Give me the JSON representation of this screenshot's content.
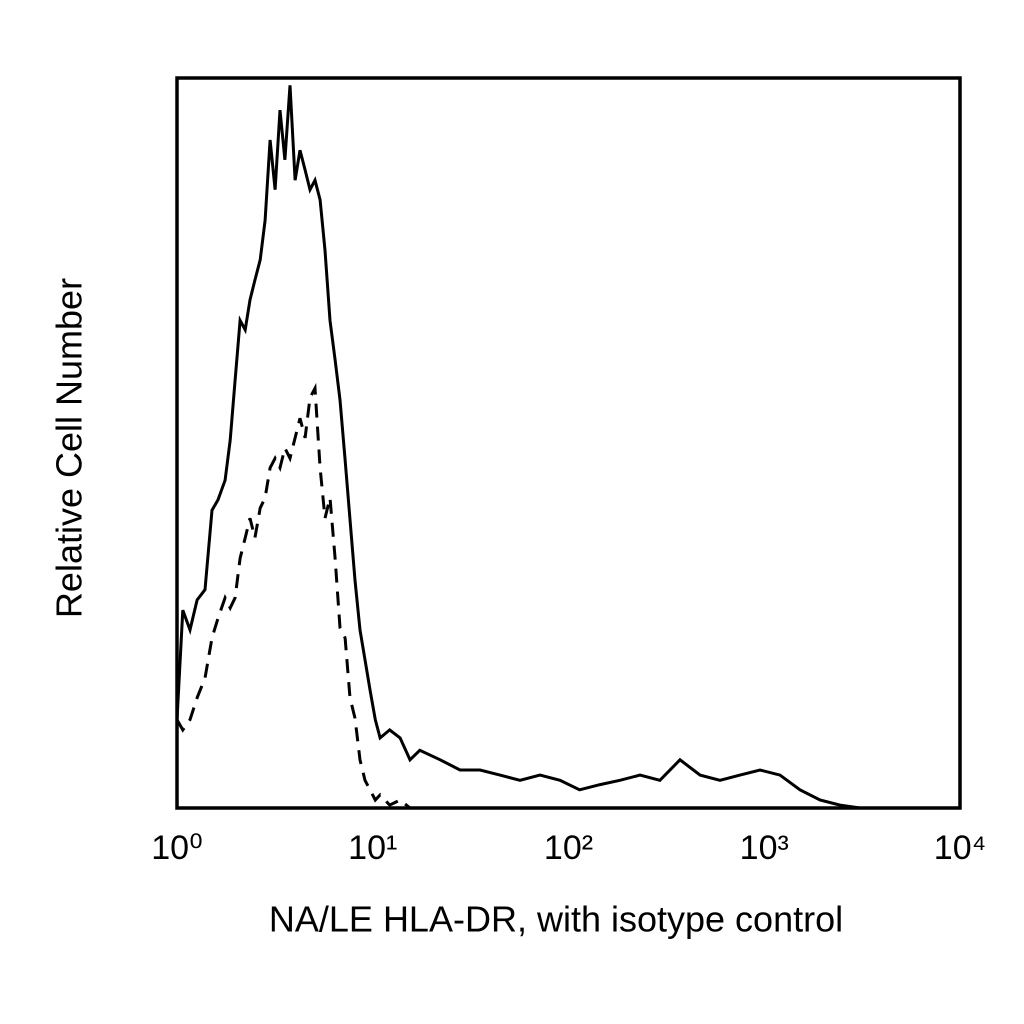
{
  "chart_data": {
    "type": "line",
    "x_label": "NA/LE HLA-DR, with isotype control",
    "y_label": "Relative Cell Number",
    "xscale": "log",
    "xlim": [
      1,
      10000
    ],
    "xticks": [
      {
        "value": 1,
        "label": "10⁰"
      },
      {
        "value": 10,
        "label": "10¹"
      },
      {
        "value": 100,
        "label": "10²"
      },
      {
        "value": 1000,
        "label": "10³"
      },
      {
        "value": 10000,
        "label": "10⁴"
      }
    ],
    "ylim": [
      0,
      100
    ],
    "grid": false,
    "x": [
      1,
      1.07,
      1.165,
      1.266,
      1.39,
      1.51,
      1.62,
      1.76,
      1.87,
      1.98,
      2.1,
      2.23,
      2.36,
      2.5,
      2.66,
      2.82,
      2.99,
      3.17,
      3.36,
      3.56,
      3.78,
      4.01,
      4.25,
      4.51,
      4.78,
      5.07,
      5.38,
      5.7,
      6.05,
      6.42,
      6.8,
      7.22,
      7.65,
      8.12,
      8.61,
      9.13,
      9.68,
      10.3,
      10.9,
      12.2,
      13.8,
      15.5,
      17.4,
      22.1,
      27.9,
      35.3,
      44.7,
      56.5,
      71.5,
      90.5,
      114,
      145,
      183,
      232,
      293,
      371,
      470,
      594,
      752,
      951,
      1204,
      1522,
      1927,
      2438,
      3084,
      4938,
      10000
    ],
    "series": [
      {
        "color": "#000000",
        "style": "solid",
        "values": [
          12.1,
          27.1,
          24.4,
          28.5,
          29.9,
          40.8,
          42.2,
          44.9,
          50.4,
          58.6,
          66.8,
          65.5,
          69.6,
          72.3,
          75.1,
          80.5,
          91.5,
          84.7,
          95.6,
          88.8,
          99.0,
          86.0,
          90.1,
          87.4,
          84.7,
          86.0,
          83.3,
          76.4,
          66.8,
          61.4,
          55.9,
          47.7,
          39.5,
          31.2,
          24.4,
          20.3,
          16.2,
          12.1,
          9.6,
          10.7,
          9.6,
          6.6,
          7.9,
          6.6,
          5.2,
          5.2,
          4.5,
          3.8,
          4.5,
          3.8,
          2.5,
          3.2,
          3.8,
          4.5,
          3.8,
          6.6,
          4.5,
          3.8,
          4.5,
          5.2,
          4.5,
          2.5,
          1.1,
          0.4,
          0,
          0,
          0
        ]
      },
      {
        "color": "#000000",
        "style": "dashed",
        "values": [
          12.1,
          10.7,
          12.1,
          15.1,
          17.8,
          23.3,
          26.0,
          28.8,
          27.4,
          28.8,
          34.2,
          37.0,
          39.7,
          37.0,
          41.1,
          42.5,
          46.6,
          47.9,
          46.6,
          49.3,
          47.9,
          50.7,
          53.4,
          50.7,
          56.2,
          57.5,
          46.6,
          39.7,
          42.5,
          34.2,
          24.7,
          23.3,
          15.1,
          12.3,
          6.6,
          3.8,
          2.5,
          1.1,
          1.8,
          0.4,
          1.1,
          0,
          0,
          0,
          0,
          0,
          0,
          0,
          0,
          0,
          0,
          0,
          0,
          0,
          0,
          0,
          0,
          0,
          0,
          0,
          0,
          0,
          0,
          0,
          0,
          0,
          0
        ]
      }
    ]
  }
}
